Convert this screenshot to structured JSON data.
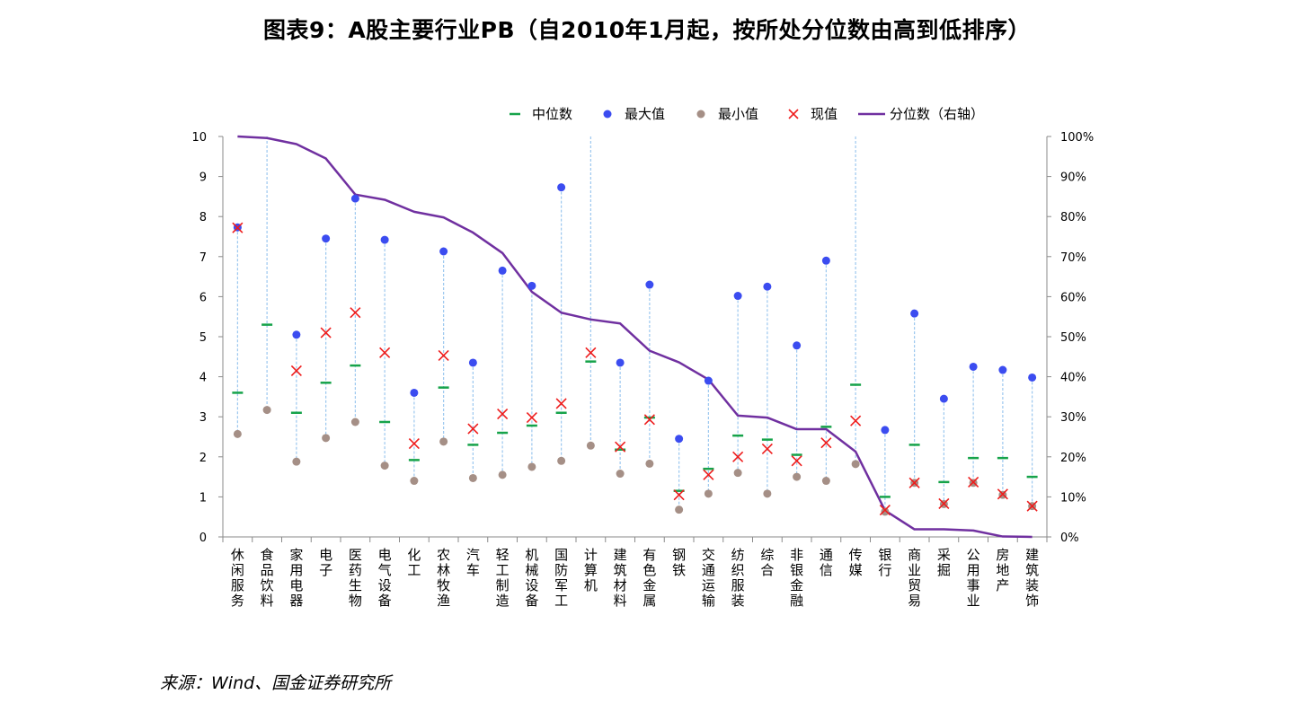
{
  "title": "图表9：A股主要行业PB（自2010年1月起，按所处分位数由高到低排序）",
  "source": "来源：Wind、国金证券研究所",
  "chart_data": {
    "type": "scatter+line",
    "categories": [
      "休闲服务",
      "食品饮料",
      "家用电器",
      "电子",
      "医药生物",
      "电气设备",
      "化工",
      "农林牧渔",
      "汽车",
      "轻工制造",
      "机械设备",
      "国防军工",
      "计算机",
      "建筑材料",
      "有色金属",
      "钢铁",
      "交通运输",
      "纺织服装",
      "综合",
      "非银金融",
      "通信",
      "传媒",
      "银行",
      "商业贸易",
      "采掘",
      "公用事业",
      "房地产",
      "建筑装饰"
    ],
    "series": [
      {
        "name": "中位数",
        "axis": "left",
        "color": "#16a34a",
        "values": [
          3.6,
          5.3,
          3.1,
          3.85,
          4.28,
          2.87,
          1.92,
          3.73,
          2.3,
          2.6,
          2.78,
          3.1,
          4.38,
          2.18,
          2.98,
          1.15,
          1.7,
          2.53,
          2.43,
          2.05,
          2.75,
          3.8,
          1.0,
          2.3,
          1.37,
          1.97,
          1.97,
          1.5
        ]
      },
      {
        "name": "最大值",
        "axis": "left",
        "color": "#3b4cf0",
        "values": [
          7.73,
          10,
          5.05,
          7.45,
          8.45,
          7.42,
          3.6,
          7.13,
          4.35,
          6.65,
          6.27,
          8.73,
          10,
          4.35,
          6.3,
          2.45,
          3.9,
          6.02,
          6.25,
          4.78,
          6.9,
          10,
          2.67,
          5.58,
          3.45,
          4.25,
          4.17,
          3.98
        ]
      },
      {
        "name": "最小值",
        "axis": "left",
        "color": "#a58f86",
        "values": [
          2.57,
          3.17,
          1.88,
          2.47,
          2.87,
          1.78,
          1.4,
          2.38,
          1.47,
          1.55,
          1.75,
          1.9,
          2.28,
          1.58,
          1.83,
          0.68,
          1.08,
          1.6,
          1.08,
          1.5,
          1.4,
          1.82,
          0.63,
          1.35,
          0.82,
          1.35,
          1.05,
          0.77
        ]
      },
      {
        "name": "现值",
        "axis": "left",
        "color": "#ee1c1c",
        "values": [
          7.72,
          null,
          4.15,
          5.1,
          5.6,
          4.6,
          2.33,
          4.53,
          2.7,
          3.07,
          2.98,
          3.33,
          4.6,
          2.25,
          2.93,
          1.05,
          1.55,
          2.0,
          2.2,
          1.9,
          2.35,
          2.9,
          0.67,
          1.35,
          0.83,
          1.37,
          1.07,
          0.77
        ]
      },
      {
        "name": "分位数（右轴）",
        "axis": "right",
        "type": "line",
        "color": "#7030a0",
        "values": [
          100,
          99.6,
          98.1,
          94.5,
          85.5,
          84.2,
          81.2,
          79.8,
          76.0,
          70.9,
          61.2,
          56.0,
          54.3,
          53.3,
          46.5,
          43.6,
          39.3,
          30.3,
          29.8,
          26.9,
          26.9,
          21.3,
          6.6,
          1.9,
          1.9,
          1.6,
          0.1,
          0.0
        ]
      }
    ],
    "yleft": {
      "min": 0,
      "max": 10,
      "ticks": [
        "0",
        "1",
        "2",
        "3",
        "4",
        "5",
        "6",
        "7",
        "8",
        "9",
        "10"
      ]
    },
    "yright": {
      "min": 0,
      "max": 100,
      "ticks": [
        "0%",
        "10%",
        "20%",
        "30%",
        "40%",
        "50%",
        "60%",
        "70%",
        "80%",
        "90%",
        "100%"
      ]
    },
    "legend_position": "top-right",
    "legend": [
      "中位数",
      "最大值",
      "最小值",
      "现值",
      "分位数（右轴）"
    ]
  }
}
